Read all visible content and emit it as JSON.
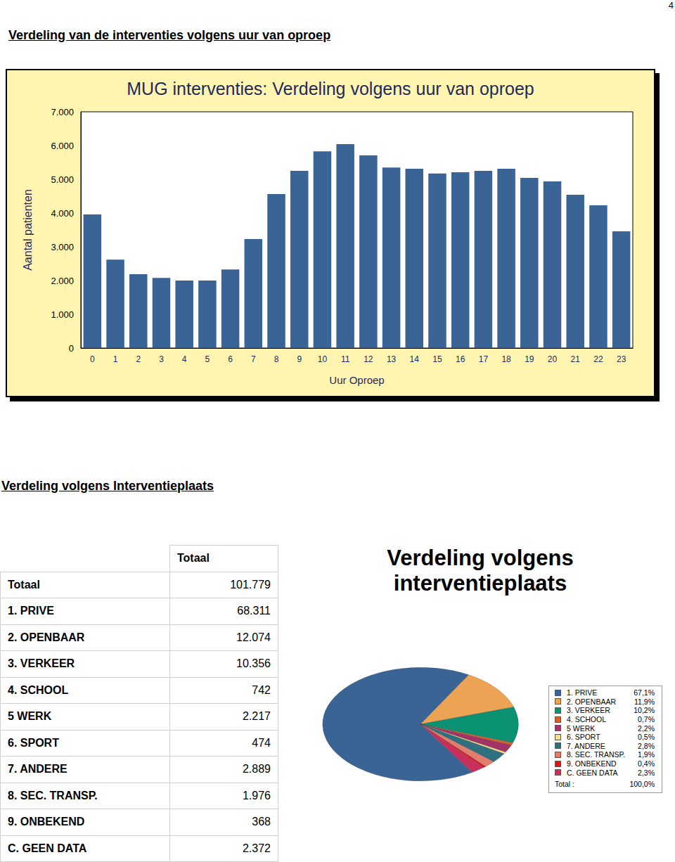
{
  "page_number": "4",
  "heading": "Verdeling van de interventies volgens uur van oproep",
  "section_heading": "Verdeling volgens Interventieplaats",
  "chart_data": [
    {
      "type": "bar",
      "title": "MUG interventies: Verdeling volgens uur van oproep",
      "x_label": "Uur Oproep",
      "y_label": "Aantal patienten",
      "categories": [
        "0",
        "1",
        "2",
        "3",
        "4",
        "5",
        "6",
        "7",
        "8",
        "9",
        "10",
        "11",
        "12",
        "13",
        "14",
        "15",
        "16",
        "17",
        "18",
        "19",
        "20",
        "21",
        "22",
        "23"
      ],
      "values": [
        3960,
        2620,
        2190,
        2080,
        2000,
        2000,
        2330,
        3230,
        4560,
        5250,
        5830,
        6040,
        5710,
        5350,
        5310,
        5170,
        5210,
        5250,
        5310,
        5040,
        4940,
        4540,
        4230,
        3460
      ],
      "color": "#3a6496",
      "ylim": [
        0,
        7000
      ],
      "yticks": [
        0,
        {
          "value": 1000,
          "label": "1.000"
        },
        {
          "value": 2000,
          "label": "2.000"
        },
        {
          "value": 3000,
          "label": "3.000"
        },
        {
          "value": 4000,
          "label": "4.000"
        },
        {
          "value": 5000,
          "label": "5.000"
        },
        {
          "value": 6000,
          "label": "6.000"
        },
        {
          "value": 7000,
          "label": "7.000"
        }
      ],
      "grid": false
    },
    {
      "type": "pie",
      "title": "Verdeling volgens interventieplaats",
      "categories": [
        "1. PRIVE",
        "2. OPENBAAR",
        "3. VERKEER",
        "4. SCHOOL",
        "5 WERK",
        "6. SPORT",
        "7. ANDERE",
        "8. SEC. TRANSP.",
        "9. ONBEKEND",
        "C. GEEN DATA"
      ],
      "values": [
        67.1,
        11.9,
        10.2,
        0.7,
        2.2,
        0.5,
        2.8,
        1.9,
        0.4,
        2.3
      ],
      "value_labels": [
        "67,1%",
        "11,9%",
        "10,2%",
        "0,7%",
        "2,2%",
        "0,5%",
        "2,8%",
        "1,9%",
        "0,4%",
        "2,3%"
      ],
      "colors": [
        "#3a6496",
        "#eda354",
        "#0a9272",
        "#d9622a",
        "#a23465",
        "#f5e08a",
        "#2e6f80",
        "#e07e6e",
        "#e0131a",
        "#c8305b"
      ],
      "legend": "right",
      "total": {
        "label": "Total :",
        "value": 100.0,
        "value_label": "100,0%"
      }
    }
  ],
  "table": {
    "columns": [
      "Totaal"
    ],
    "rows": [
      [
        "Totaal",
        "101.779"
      ],
      [
        "1. PRIVE",
        "68.311"
      ],
      [
        "2. OPENBAAR",
        "12.074"
      ],
      [
        "3. VERKEER",
        "10.356"
      ],
      [
        "4. SCHOOL",
        "742"
      ],
      [
        "5 WERK",
        "2.217"
      ],
      [
        "6. SPORT",
        "474"
      ],
      [
        "7. ANDERE",
        "2.889"
      ],
      [
        "8. SEC. TRANSP.",
        "1.976"
      ],
      [
        "9. ONBEKEND",
        "368"
      ],
      [
        "C. GEEN DATA",
        "2.372"
      ]
    ]
  }
}
